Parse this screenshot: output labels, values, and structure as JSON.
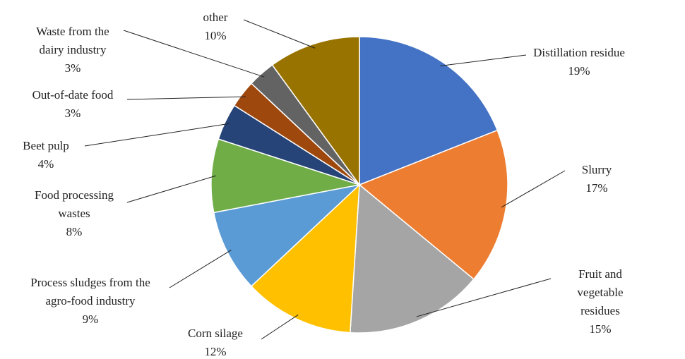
{
  "chart_data": {
    "type": "pie",
    "categories": [
      "Distillation residue",
      "Slurry",
      "Fruit and vegetable\nresidues",
      "Corn silage",
      "Process sludges from the\nagro-food industry",
      "Food processing\nwastes",
      "Beet pulp",
      "Out-of-date food",
      "Waste from the\ndairy industry",
      "other"
    ],
    "values": [
      19,
      17,
      15,
      12,
      9,
      8,
      4,
      3,
      3,
      10
    ],
    "value_labels": [
      "19%",
      "17%",
      "15%",
      "12%",
      "9%",
      "8%",
      "4%",
      "3%",
      "3%",
      "10%"
    ],
    "colors": [
      "#4472c4",
      "#ed7d31",
      "#a5a5a5",
      "#ffc000",
      "#5b9bd5",
      "#70ad47",
      "#264478",
      "#9e480e",
      "#636363",
      "#997300"
    ]
  }
}
